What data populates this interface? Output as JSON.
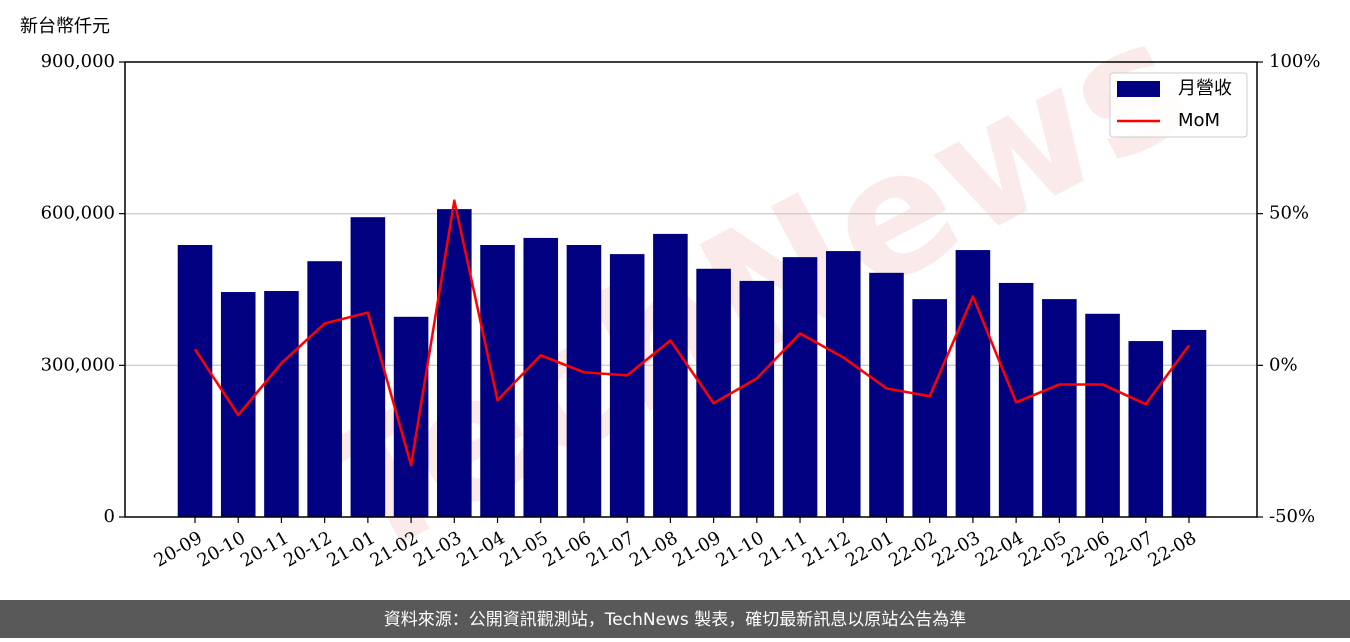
{
  "chart_data": {
    "type": "bar",
    "y_unit_label": "新台幣仟元",
    "watermark": "TechNews",
    "source_note": "資料來源：公開資訊觀測站，TechNews 製表，確切最新訊息以原站公告為準",
    "categories": [
      "20-09",
      "20-10",
      "20-11",
      "20-12",
      "21-01",
      "21-02",
      "21-03",
      "21-04",
      "21-05",
      "21-06",
      "21-07",
      "21-08",
      "21-09",
      "21-10",
      "21-11",
      "21-12",
      "22-01",
      "22-02",
      "22-03",
      "22-04",
      "22-05",
      "22-06",
      "22-07",
      "22-08"
    ],
    "series": [
      {
        "name": "月營收",
        "type": "bar",
        "axis": "y",
        "color": "#000080",
        "values": [
          538000,
          445000,
          447000,
          506000,
          593000,
          396000,
          609000,
          538000,
          552000,
          538000,
          520000,
          560000,
          491000,
          467000,
          514000,
          526000,
          483000,
          431000,
          528000,
          463000,
          431000,
          402000,
          348000,
          370000
        ]
      },
      {
        "name": "MoM",
        "type": "line",
        "axis": "y2",
        "color": "#ff0000",
        "values": [
          5.3,
          -16.4,
          0.7,
          13.8,
          17.4,
          -32.9,
          54.3,
          -11.5,
          3.3,
          -2.3,
          -3.3,
          8.2,
          -12.5,
          -4.3,
          10.5,
          2.6,
          -7.6,
          -10.2,
          22.7,
          -12.2,
          -6.3,
          -6.3,
          -12.8,
          6.6
        ]
      }
    ],
    "ylim": [
      0,
      900000
    ],
    "yticks": [
      {
        "value": 0,
        "label": "0"
      },
      {
        "value": 300000,
        "label": "300,000"
      },
      {
        "value": 600000,
        "label": "600,000"
      },
      {
        "value": 900000,
        "label": "900,000"
      }
    ],
    "y2lim": [
      -50,
      100
    ],
    "y2ticks": [
      {
        "value": -50,
        "label": "-50%"
      },
      {
        "value": 0,
        "label": "0%"
      },
      {
        "value": 50,
        "label": "50%"
      },
      {
        "value": 100,
        "label": "100%"
      }
    ],
    "grid": true,
    "legend": "upper right"
  }
}
